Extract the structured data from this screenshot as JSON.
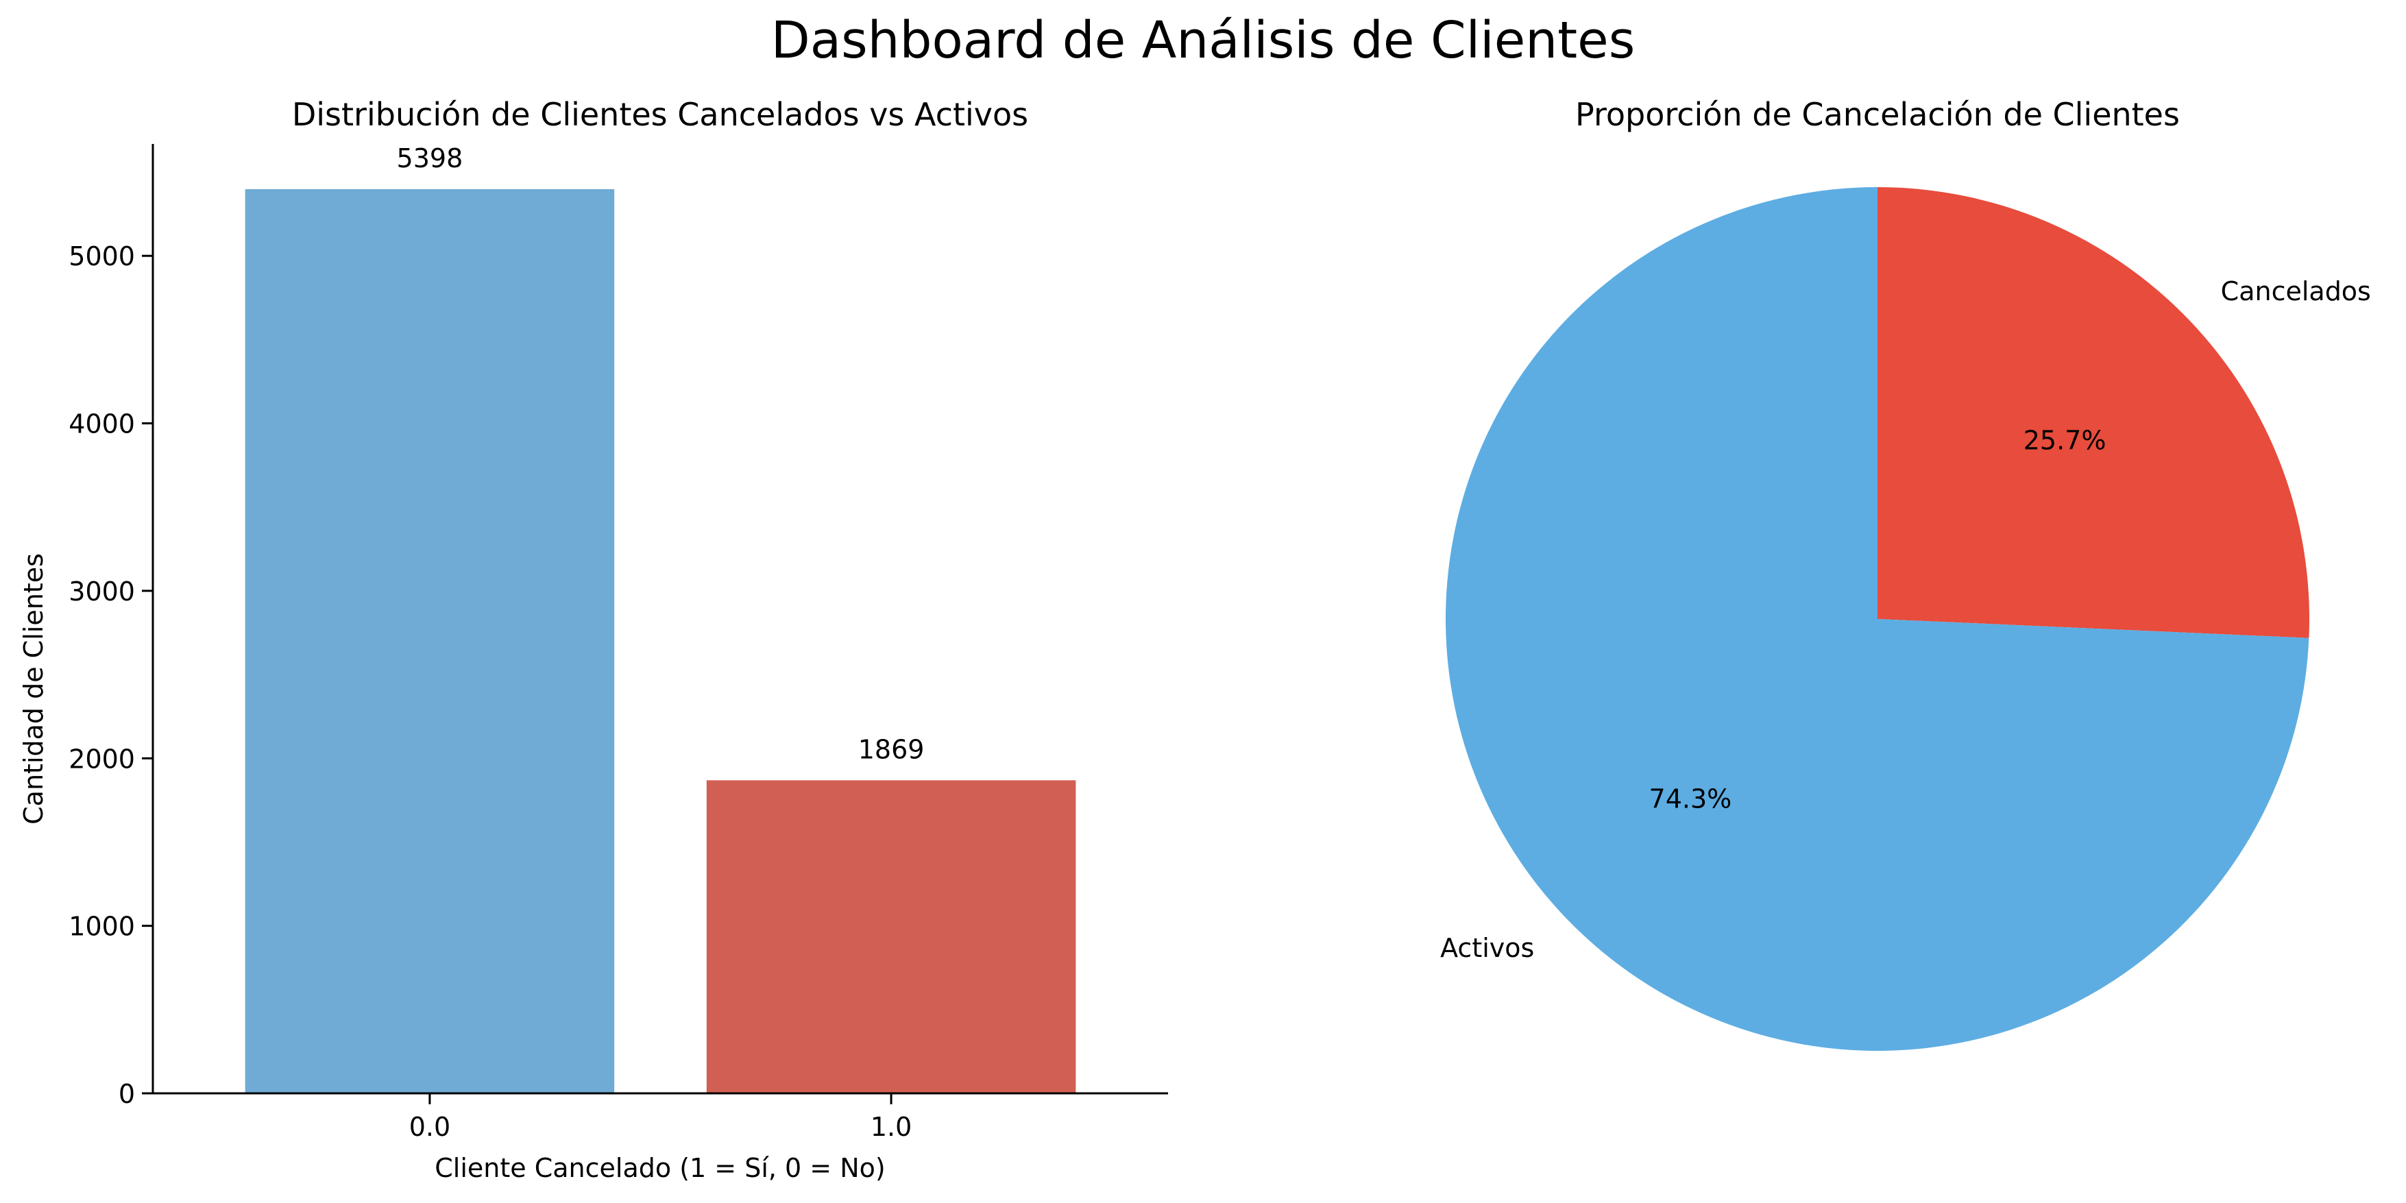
{
  "figure": {
    "title": "Dashboard de Análisis de Clientes"
  },
  "chart_data": [
    {
      "type": "bar",
      "title": "Distribución de Clientes Cancelados vs Activos",
      "xlabel": "Cliente Cancelado (1 = Sí, 0 = No)",
      "ylabel": "Cantidad de Clientes",
      "categories": [
        "0.0",
        "1.0"
      ],
      "values": [
        5398,
        1869
      ],
      "value_labels": [
        "5398",
        "1869"
      ],
      "colors": [
        "#6fabd4",
        "#d25f53"
      ],
      "ylim": [
        0,
        5668
      ],
      "yticks": [
        0,
        1000,
        2000,
        3000,
        4000,
        5000
      ],
      "ytick_labels": [
        "0",
        "1000",
        "2000",
        "3000",
        "4000",
        "5000"
      ],
      "grid": false
    },
    {
      "type": "pie",
      "title": "Proporción de Cancelación de Clientes",
      "labels": [
        "Cancelados",
        "Activos"
      ],
      "values": [
        25.7,
        74.3
      ],
      "pct_labels": [
        "25.7%",
        "74.3%"
      ],
      "colors": [
        "#e74c3c",
        "#5dade2"
      ],
      "start_angle_deg": 90,
      "direction": "clockwise"
    }
  ]
}
